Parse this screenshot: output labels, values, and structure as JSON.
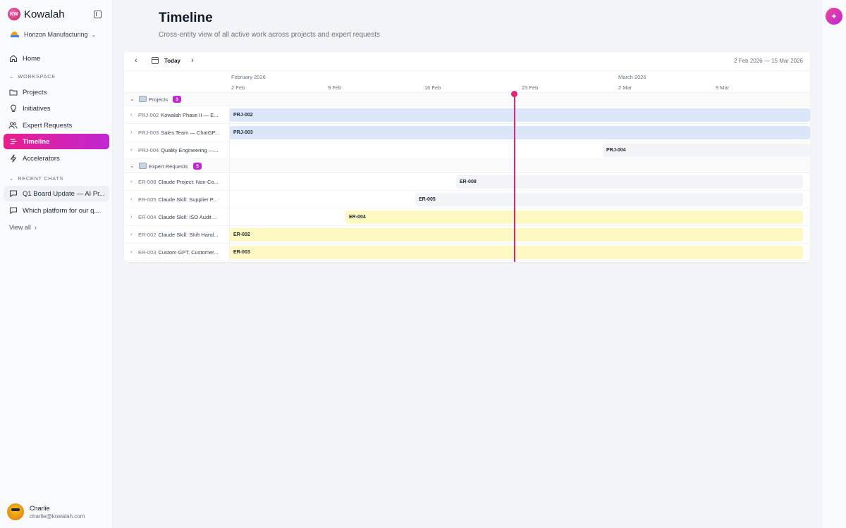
{
  "brand": {
    "name": "Kowalah",
    "logo_text": "KW"
  },
  "org": {
    "name": "Horizon Manufacturing"
  },
  "nav": {
    "home": "Home",
    "workspace_label": "WORKSPACE",
    "items": [
      {
        "label": "Projects",
        "icon": "folder-icon"
      },
      {
        "label": "Initiatives",
        "icon": "lightbulb-icon"
      },
      {
        "label": "Expert Requests",
        "icon": "users-icon"
      },
      {
        "label": "Timeline",
        "icon": "timeline-icon",
        "active": true
      },
      {
        "label": "Accelerators",
        "icon": "bolt-icon"
      }
    ],
    "recent_chats_label": "RECENT CHATS",
    "chats": [
      {
        "label": "Q1 Board Update — AI Pr..."
      },
      {
        "label": "Which platform for our q..."
      }
    ],
    "view_all": "View all"
  },
  "user": {
    "name": "Charlie",
    "email": "charlie@kowalah.com"
  },
  "page": {
    "title": "Timeline",
    "subtitle": "Cross-entity view of all active work across projects and expert requests"
  },
  "toolbar": {
    "today": "Today",
    "range": "2 Feb 2026 — 15 Mar 2026"
  },
  "timeline": {
    "months": [
      {
        "label": "February 2026"
      },
      {
        "label": "March 2026"
      }
    ],
    "weeks": [
      {
        "label": "2 Feb"
      },
      {
        "label": "9 Feb"
      },
      {
        "label": "16 Feb"
      },
      {
        "label": "23 Feb"
      },
      {
        "label": "2 Mar"
      },
      {
        "label": "9 Mar"
      }
    ],
    "groups": {
      "projects": {
        "label": "Projects",
        "count": "3",
        "rows": [
          {
            "code": "PRJ-002",
            "title": "Kowalah Phase II — E...",
            "bar": "PRJ-002",
            "color": "#dbe7f8"
          },
          {
            "code": "PRJ-003",
            "title": "Sales Team — ChatGP...",
            "bar": "PRJ-003",
            "color": "#dbe7f8"
          },
          {
            "code": "PRJ-004",
            "title": "Quality Engineering —...",
            "bar": "PRJ-004",
            "color": "#f3f4f6"
          }
        ]
      },
      "expert_requests": {
        "label": "Expert Requests",
        "count": "5",
        "rows": [
          {
            "code": "ER-008",
            "title": "Claude Project: Non-Co...",
            "bar": "ER-008",
            "color": "#f3f4f6"
          },
          {
            "code": "ER-005",
            "title": "Claude Skill: Supplier P...",
            "bar": "ER-005",
            "color": "#f3f4f6"
          },
          {
            "code": "ER-004",
            "title": "Claude Skill: ISO Audit ...",
            "bar": "ER-004",
            "color": "#fef9c3"
          },
          {
            "code": "ER-002",
            "title": "Claude Skill: Shift Hand...",
            "bar": "ER-002",
            "color": "#fef9c3"
          },
          {
            "code": "ER-003",
            "title": "Custom GPT: Customer...",
            "bar": "ER-003",
            "color": "#fef9c3"
          }
        ]
      }
    }
  }
}
